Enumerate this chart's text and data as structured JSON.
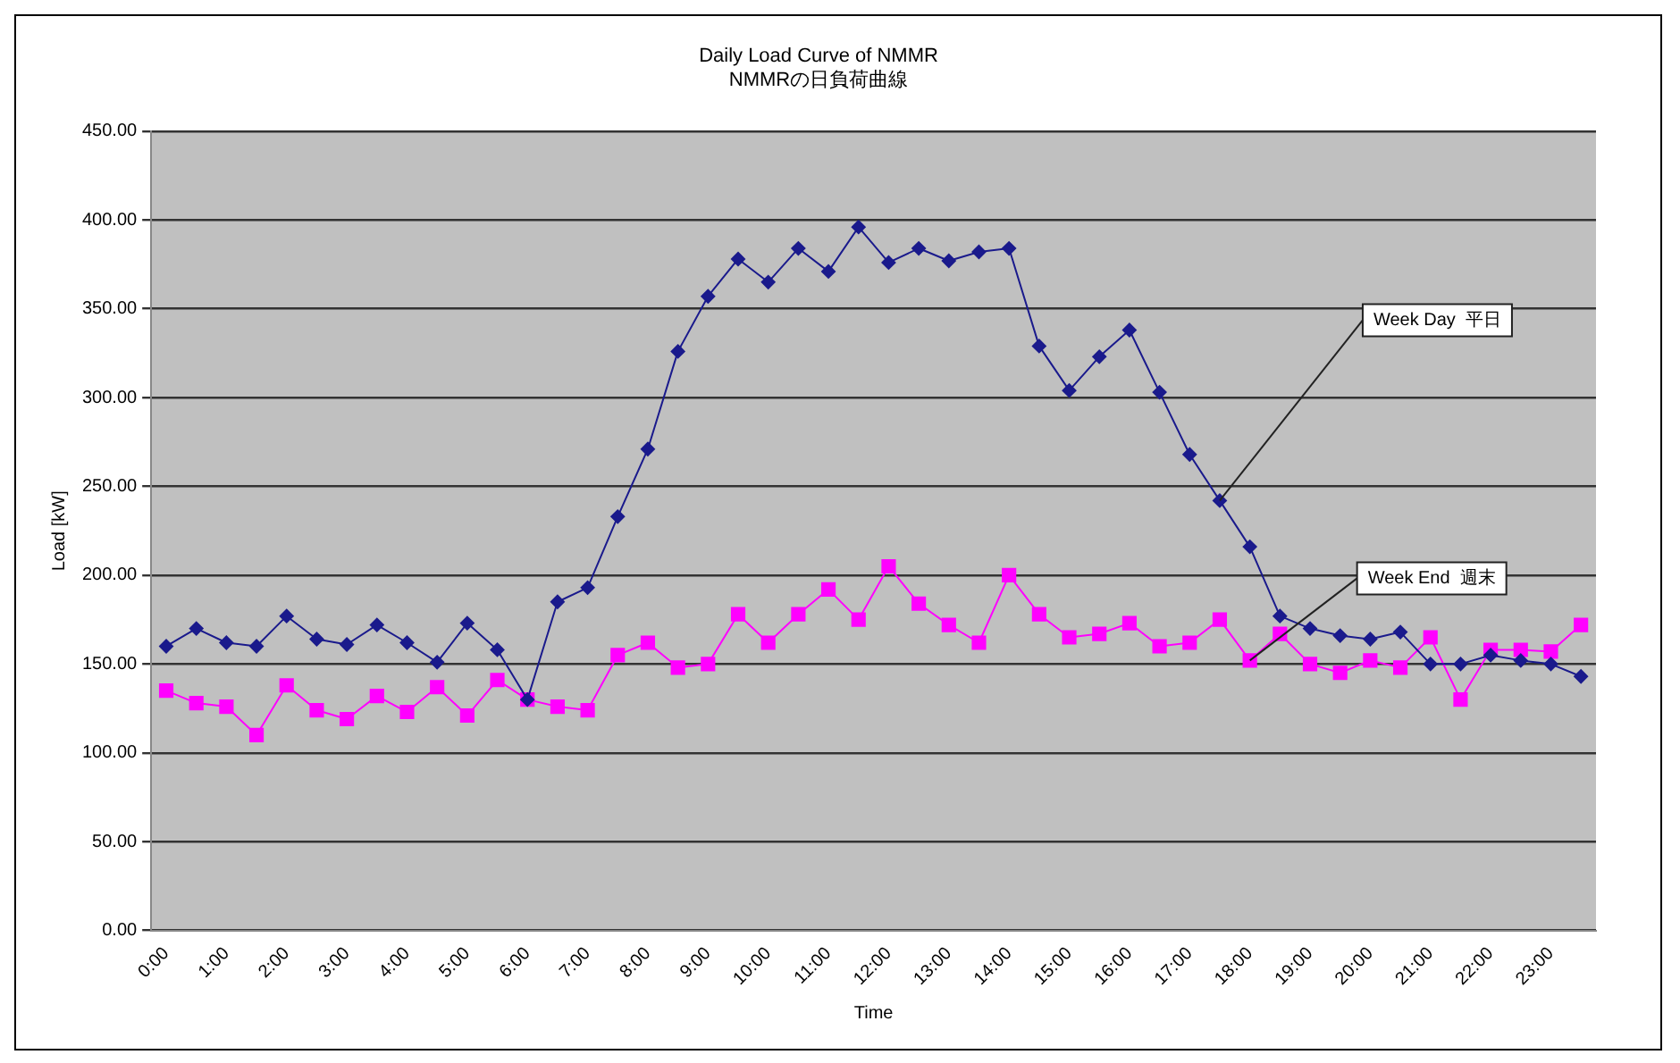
{
  "chart_data": {
    "type": "line",
    "title": "Daily Load Curve of NMMR",
    "subtitle": "NMMRの日負荷曲線",
    "xlabel": "Time",
    "ylabel": "Load [kW]",
    "categories": [
      "0:00",
      null,
      "1:00",
      null,
      "2:00",
      null,
      "3:00",
      null,
      "4:00",
      null,
      "5:00",
      null,
      "6:00",
      null,
      "7:00",
      null,
      "8:00",
      null,
      "9:00",
      null,
      "10:00",
      null,
      "11:00",
      null,
      "12:00",
      null,
      "13:00",
      null,
      "14:00",
      null,
      "15:00",
      null,
      "16:00",
      null,
      "17:00",
      null,
      "18:00",
      null,
      "19:00",
      null,
      "20:00",
      null,
      "21:00",
      null,
      "22:00",
      null,
      "23:00",
      null
    ],
    "series": [
      {
        "name": "Week Day  平日",
        "color": "#1a1a8c",
        "marker": "diamond",
        "values": [
          160,
          170,
          162,
          160,
          177,
          164,
          161,
          172,
          162,
          151,
          173,
          158,
          130,
          185,
          193,
          233,
          271,
          326,
          357,
          378,
          365,
          384,
          371,
          396,
          376,
          384,
          377,
          382,
          384,
          329,
          304,
          323,
          338,
          303,
          268,
          242,
          216,
          177,
          170,
          166,
          164,
          168,
          150,
          150,
          155,
          152,
          150,
          143
        ]
      },
      {
        "name": "Week End  週末",
        "color": "#ff00ff",
        "marker": "square",
        "values": [
          135,
          128,
          126,
          110,
          138,
          124,
          119,
          132,
          123,
          137,
          121,
          141,
          130,
          126,
          124,
          155,
          162,
          148,
          150,
          178,
          162,
          178,
          192,
          175,
          205,
          184,
          172,
          162,
          200,
          178,
          165,
          167,
          173,
          160,
          162,
          175,
          152,
          167,
          150,
          145,
          152,
          148,
          165,
          130,
          158,
          158,
          157,
          172
        ]
      }
    ],
    "ylim": [
      0,
      450
    ],
    "yticks": [
      {
        "value": 0,
        "label": "0.00"
      },
      {
        "value": 50,
        "label": "50.00"
      },
      {
        "value": 100,
        "label": "100.00"
      },
      {
        "value": 150,
        "label": "150.00"
      },
      {
        "value": 200,
        "label": "200.00"
      },
      {
        "value": 250,
        "label": "250.00"
      },
      {
        "value": 300,
        "label": "300.00"
      },
      {
        "value": 350,
        "label": "350.00"
      },
      {
        "value": 400,
        "label": "400.00"
      },
      {
        "value": 450,
        "label": "450.00"
      }
    ],
    "grid": "y",
    "legend": false
  }
}
